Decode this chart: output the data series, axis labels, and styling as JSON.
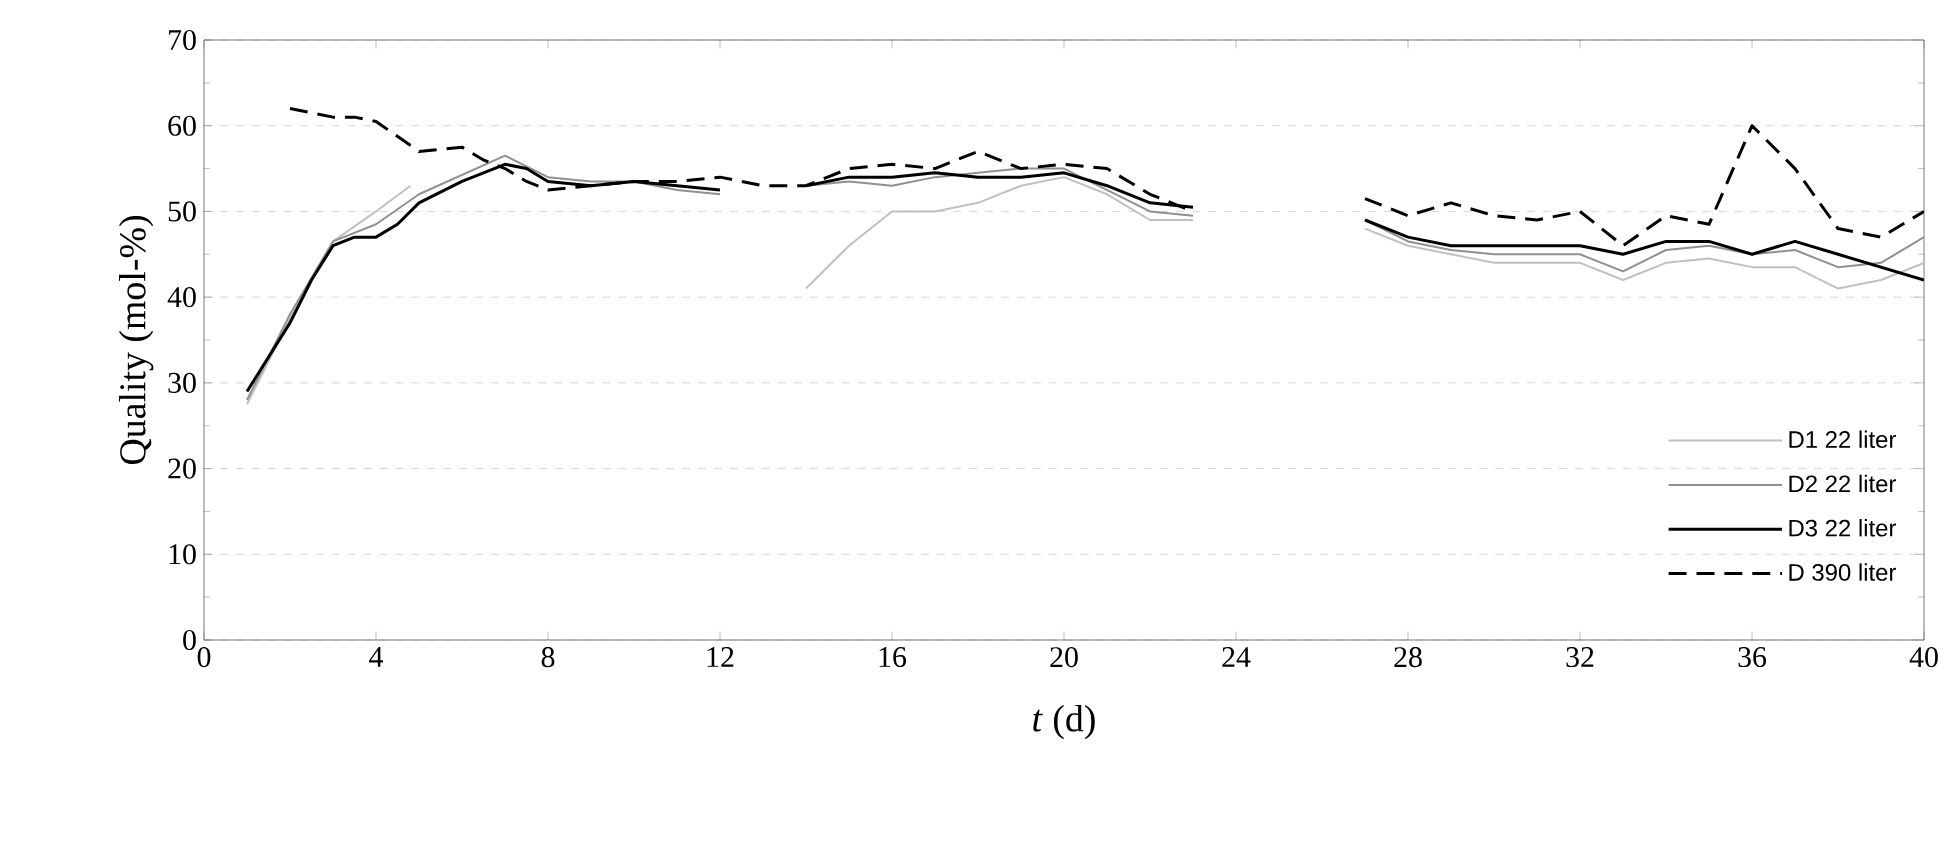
{
  "chart_data": {
    "type": "line",
    "xlabel": "*t* (d)",
    "ylabel": "Quality (mol-%)",
    "xlim": [
      0,
      40
    ],
    "xticks": [
      0,
      4,
      8,
      12,
      16,
      20,
      24,
      28,
      32,
      36,
      40
    ],
    "ylim": [
      0,
      70
    ],
    "yticks": [
      0,
      10,
      20,
      30,
      40,
      50,
      60,
      70
    ],
    "grid": "y",
    "legend": "bottom right",
    "marker": "none",
    "series": [
      {
        "name": "D1 22 liter",
        "color": "#c0c0c0",
        "line_style": "solid",
        "x": [
          1,
          2,
          3,
          4,
          4.8,
          9,
          14,
          15,
          16,
          17,
          18,
          19,
          20,
          21,
          22,
          23,
          25,
          27,
          28,
          29,
          30,
          31,
          32,
          33,
          34,
          35,
          36,
          37,
          38,
          39,
          40
        ],
        "values": [
          27.5,
          37.5,
          46.5,
          50,
          53,
          null,
          41,
          46,
          50,
          50,
          51,
          53,
          54,
          52,
          49,
          49,
          null,
          48,
          46,
          45,
          44,
          44,
          44,
          42,
          44,
          44.5,
          43.5,
          43.5,
          41,
          42,
          44
        ]
      },
      {
        "name": "D2 22 liter",
        "color": "#909090",
        "line_style": "solid",
        "x": [
          1,
          2,
          3,
          4,
          5,
          7,
          8,
          9,
          10,
          11,
          12,
          13,
          14,
          15,
          16,
          17,
          18,
          19,
          20,
          21,
          22,
          23,
          25,
          27,
          28,
          29,
          30,
          31,
          32,
          33,
          34,
          35,
          36,
          37,
          38,
          39,
          40
        ],
        "values": [
          28,
          38,
          46.5,
          48.5,
          52,
          56.5,
          54,
          53.5,
          53.5,
          52.5,
          52,
          null,
          53,
          53.5,
          53,
          54,
          54.5,
          55,
          55,
          52.5,
          50,
          49.5,
          null,
          49,
          46.5,
          45.5,
          45,
          45,
          45,
          43,
          45.5,
          46,
          45,
          45.5,
          43.5,
          44,
          47
        ]
      },
      {
        "name": "D3 22 liter",
        "color": "#000000",
        "line_style": "solid",
        "x": [
          1,
          2,
          2.5,
          3,
          3.5,
          4,
          4.5,
          5,
          6,
          7,
          7.5,
          8,
          9,
          10,
          11,
          12,
          13,
          14,
          15,
          16,
          17,
          18,
          19,
          20,
          21,
          22,
          23,
          25,
          27,
          28,
          29,
          30,
          31,
          32,
          33,
          34,
          35,
          36,
          37,
          38,
          39,
          40
        ],
        "values": [
          29,
          37,
          42,
          46,
          47,
          47,
          48.5,
          51,
          53.5,
          55.5,
          55,
          53.5,
          53,
          53.5,
          53,
          52.5,
          null,
          53,
          54,
          54,
          54.5,
          54,
          54,
          54.5,
          53,
          51,
          50.5,
          null,
          49,
          47,
          46,
          46,
          46,
          46,
          45,
          46.5,
          46.5,
          45,
          46.5,
          45,
          43.5,
          42
        ]
      },
      {
        "name": "D 390 liter",
        "color": "#000000",
        "line_style": "dashed",
        "x": [
          2,
          3,
          3.5,
          4,
          5,
          6,
          6.5,
          7,
          7.5,
          8,
          9,
          10,
          11,
          12,
          13,
          14,
          15,
          16,
          17,
          18,
          19,
          20,
          21,
          22,
          23,
          25,
          27,
          28,
          29,
          30,
          31,
          32,
          33,
          34,
          35,
          36,
          37,
          38,
          39,
          40
        ],
        "values": [
          62,
          61,
          61,
          60.5,
          57,
          57.5,
          56,
          55,
          53.5,
          52.5,
          53,
          53.5,
          53.5,
          54,
          53,
          53,
          55,
          55.5,
          55,
          57,
          55,
          55.5,
          55,
          52,
          50,
          null,
          51.5,
          49.5,
          51,
          49.5,
          49,
          50,
          46,
          49.5,
          48.5,
          60,
          55,
          48,
          47,
          50
        ]
      }
    ]
  }
}
